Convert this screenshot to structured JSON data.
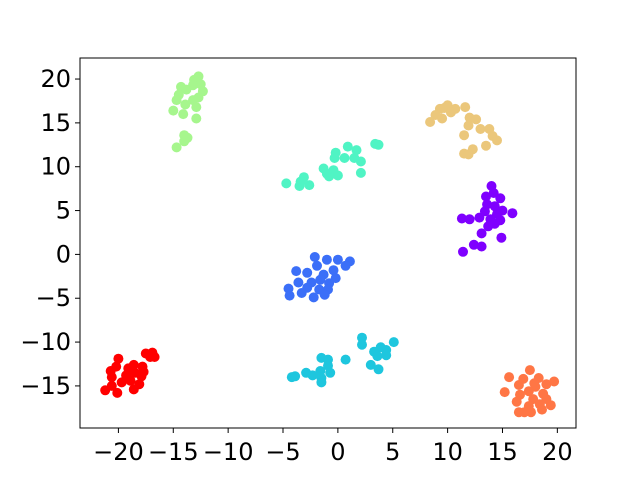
{
  "chart_data": {
    "type": "scatter",
    "title": "",
    "xlabel": "",
    "ylabel": "",
    "xlim": [
      -23.5,
      21.7
    ],
    "ylim": [
      -19.8,
      22.4
    ],
    "xticks": [
      -20,
      -15,
      -10,
      -5,
      0,
      5,
      10,
      15,
      20
    ],
    "yticks": [
      -15,
      -10,
      -5,
      0,
      5,
      10,
      15,
      20
    ],
    "grid": false,
    "legend": "none",
    "series": [
      {
        "color": "#7f00ff",
        "points": [
          [
            14.0,
            7.8
          ],
          [
            14.2,
            7.0
          ],
          [
            13.5,
            6.6
          ],
          [
            14.8,
            6.4
          ],
          [
            13.6,
            5.7
          ],
          [
            14.3,
            5.5
          ],
          [
            15.0,
            5.0
          ],
          [
            15.9,
            4.7
          ],
          [
            13.4,
            4.9
          ],
          [
            14.5,
            4.6
          ],
          [
            12.9,
            4.2
          ],
          [
            11.3,
            4.1
          ],
          [
            12.0,
            4.0
          ],
          [
            13.9,
            4.0
          ],
          [
            14.8,
            3.9
          ],
          [
            13.7,
            3.2
          ],
          [
            14.3,
            3.5
          ],
          [
            13.1,
            2.4
          ],
          [
            14.9,
            1.9
          ],
          [
            12.4,
            1.1
          ],
          [
            13.1,
            0.9
          ],
          [
            11.4,
            0.3
          ]
        ]
      },
      {
        "color": "#3b6ff8",
        "points": [
          [
            -2.1,
            -0.3
          ],
          [
            -1.0,
            -0.6
          ],
          [
            0.0,
            -0.6
          ],
          [
            1.1,
            -0.8
          ],
          [
            0.7,
            -1.3
          ],
          [
            -1.9,
            -1.3
          ],
          [
            -3.8,
            -1.9
          ],
          [
            -1.3,
            -2.3
          ],
          [
            -0.4,
            -1.8
          ],
          [
            -2.8,
            -2.1
          ],
          [
            -0.2,
            -2.7
          ],
          [
            -1.6,
            -2.9
          ],
          [
            -0.8,
            -3.3
          ],
          [
            -2.4,
            -3.2
          ],
          [
            -3.6,
            -3.2
          ],
          [
            -2.8,
            -3.8
          ],
          [
            -1.7,
            -4.0
          ],
          [
            -0.9,
            -4.0
          ],
          [
            -3.3,
            -4.4
          ],
          [
            -4.5,
            -3.9
          ],
          [
            -2.2,
            -4.9
          ],
          [
            -4.4,
            -4.7
          ],
          [
            -1.2,
            -4.6
          ]
        ]
      },
      {
        "color": "#1ec6de",
        "points": [
          [
            2.2,
            -9.5
          ],
          [
            5.1,
            -10.0
          ],
          [
            2.2,
            -10.3
          ],
          [
            3.9,
            -10.6
          ],
          [
            4.4,
            -10.9
          ],
          [
            3.3,
            -11.1
          ],
          [
            3.6,
            -11.6
          ],
          [
            4.4,
            -11.5
          ],
          [
            -1.5,
            -11.8
          ],
          [
            -0.9,
            -12.0
          ],
          [
            0.7,
            -12.0
          ],
          [
            3.0,
            -12.6
          ],
          [
            -0.9,
            -12.7
          ],
          [
            3.7,
            -13.1
          ],
          [
            -1.6,
            -13.3
          ],
          [
            -0.7,
            -13.5
          ],
          [
            -2.9,
            -13.5
          ],
          [
            -2.3,
            -13.8
          ],
          [
            -3.9,
            -13.9
          ],
          [
            -4.2,
            -14.0
          ],
          [
            -1.5,
            -14.1
          ],
          [
            -1.5,
            -14.6
          ]
        ]
      },
      {
        "color": "#50f4c4",
        "points": [
          [
            0.9,
            12.3
          ],
          [
            1.7,
            11.9
          ],
          [
            3.4,
            12.6
          ],
          [
            3.7,
            12.5
          ],
          [
            -0.2,
            11.6
          ],
          [
            -0.3,
            11.0
          ],
          [
            0.6,
            11.0
          ],
          [
            1.5,
            11.0
          ],
          [
            2.1,
            10.6
          ],
          [
            -1.3,
            9.8
          ],
          [
            -0.4,
            9.6
          ],
          [
            -1.0,
            9.2
          ],
          [
            0.0,
            9.0
          ],
          [
            2.1,
            9.3
          ],
          [
            -0.8,
            8.9
          ],
          [
            -3.1,
            8.8
          ],
          [
            -3.4,
            8.3
          ],
          [
            -4.7,
            8.1
          ],
          [
            -2.6,
            7.9
          ],
          [
            -3.5,
            7.8
          ]
        ]
      },
      {
        "color": "#a6f68d",
        "points": [
          [
            -12.7,
            20.3
          ],
          [
            -13.1,
            19.9
          ],
          [
            -12.5,
            19.4
          ],
          [
            -14.3,
            19.1
          ],
          [
            -13.2,
            19.3
          ],
          [
            -13.8,
            18.8
          ],
          [
            -12.3,
            18.6
          ],
          [
            -13.2,
            17.6
          ],
          [
            -14.5,
            18.2
          ],
          [
            -12.7,
            17.9
          ],
          [
            -14.7,
            17.6
          ],
          [
            -13.9,
            17.1
          ],
          [
            -12.9,
            16.8
          ],
          [
            -15.0,
            16.4
          ],
          [
            -14.1,
            16.0
          ],
          [
            -12.9,
            15.5
          ],
          [
            -14.0,
            13.6
          ],
          [
            -13.7,
            13.3
          ],
          [
            -14.0,
            12.9
          ],
          [
            -14.7,
            12.2
          ]
        ]
      },
      {
        "color": "#ebc77b",
        "points": [
          [
            10.0,
            17.0
          ],
          [
            9.7,
            16.7
          ],
          [
            10.7,
            16.6
          ],
          [
            11.6,
            16.8
          ],
          [
            9.3,
            16.6
          ],
          [
            10.3,
            16.2
          ],
          [
            8.9,
            15.9
          ],
          [
            9.5,
            15.5
          ],
          [
            12.0,
            15.6
          ],
          [
            12.6,
            15.4
          ],
          [
            8.4,
            15.1
          ],
          [
            13.0,
            14.3
          ],
          [
            11.9,
            14.7
          ],
          [
            13.8,
            14.3
          ],
          [
            14.1,
            13.5
          ],
          [
            11.5,
            13.6
          ],
          [
            14.5,
            13.0
          ],
          [
            13.5,
            12.4
          ],
          [
            12.3,
            12.0
          ],
          [
            11.5,
            11.5
          ],
          [
            11.9,
            11.4
          ]
        ]
      },
      {
        "color": "#ff7645",
        "points": [
          [
            17.5,
            -13.2
          ],
          [
            15.6,
            -14.0
          ],
          [
            18.3,
            -14.1
          ],
          [
            16.9,
            -14.2
          ],
          [
            17.9,
            -14.7
          ],
          [
            19.7,
            -14.5
          ],
          [
            16.5,
            -14.9
          ],
          [
            18.0,
            -15.1
          ],
          [
            19.0,
            -14.8
          ],
          [
            15.2,
            -15.7
          ],
          [
            17.4,
            -15.6
          ],
          [
            18.7,
            -15.9
          ],
          [
            16.6,
            -16.0
          ],
          [
            17.8,
            -16.5
          ],
          [
            19.0,
            -16.5
          ],
          [
            16.3,
            -16.8
          ],
          [
            18.4,
            -17.1
          ],
          [
            17.4,
            -17.3
          ],
          [
            19.4,
            -17.2
          ],
          [
            18.6,
            -17.7
          ],
          [
            17.0,
            -18.0
          ],
          [
            17.6,
            -18.0
          ],
          [
            16.5,
            -18.0
          ]
        ]
      },
      {
        "color": "#ff0000",
        "points": [
          [
            -16.9,
            -11.2
          ],
          [
            -17.5,
            -11.3
          ],
          [
            -16.7,
            -11.7
          ],
          [
            -17.1,
            -11.7
          ],
          [
            -20.0,
            -11.9
          ],
          [
            -20.2,
            -12.8
          ],
          [
            -18.6,
            -12.6
          ],
          [
            -17.8,
            -12.8
          ],
          [
            -19.1,
            -13.0
          ],
          [
            -17.7,
            -13.4
          ],
          [
            -20.7,
            -13.3
          ],
          [
            -18.5,
            -13.5
          ],
          [
            -19.3,
            -13.8
          ],
          [
            -17.9,
            -13.9
          ],
          [
            -20.6,
            -14.0
          ],
          [
            -18.9,
            -14.4
          ],
          [
            -19.7,
            -14.6
          ],
          [
            -18.1,
            -14.8
          ],
          [
            -20.6,
            -15.0
          ],
          [
            -18.6,
            -15.4
          ],
          [
            -21.2,
            -15.5
          ],
          [
            -20.1,
            -15.8
          ]
        ]
      }
    ]
  }
}
